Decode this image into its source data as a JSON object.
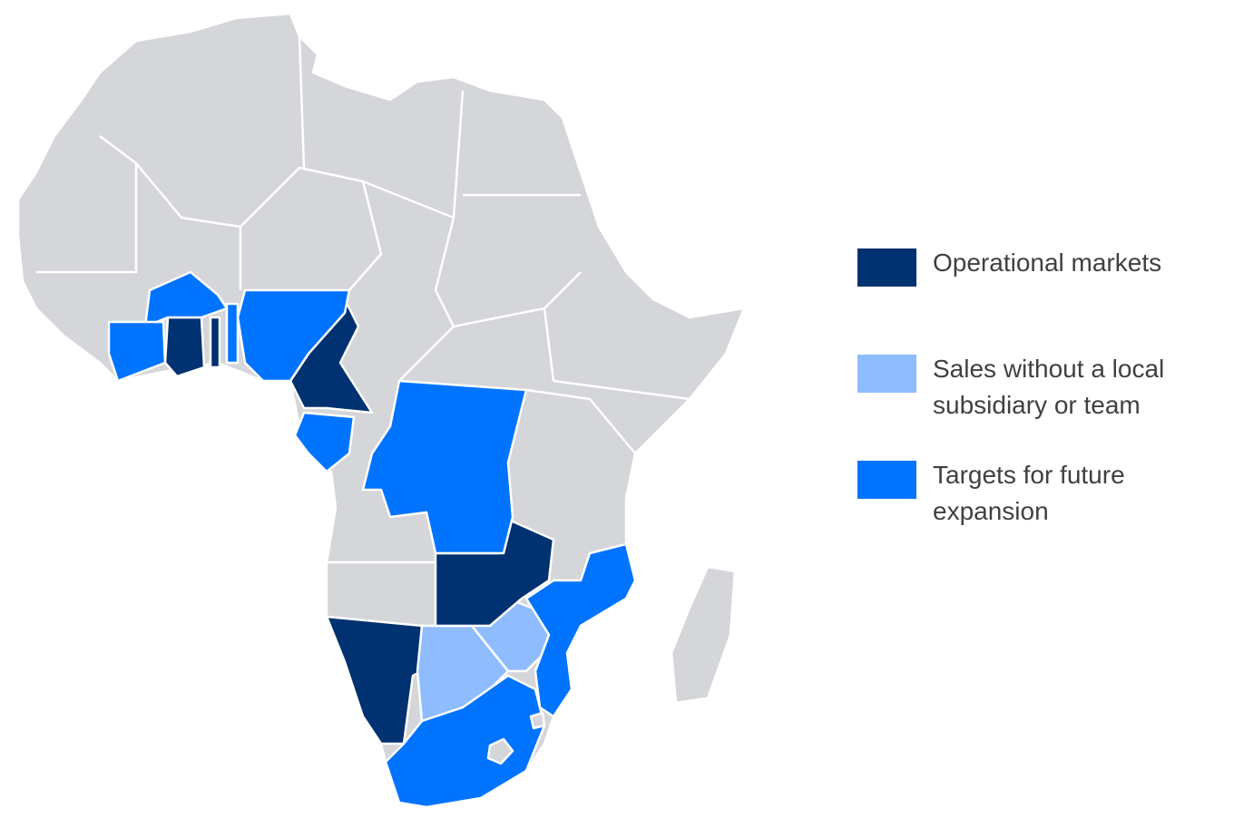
{
  "legend": [
    {
      "label": "Operational markets",
      "color": "#003170"
    },
    {
      "label": "Sales without a local subsidiary or team",
      "color": "#8fbcff"
    },
    {
      "label": "Targets for future expansion",
      "color": "#0074ff"
    }
  ]
}
